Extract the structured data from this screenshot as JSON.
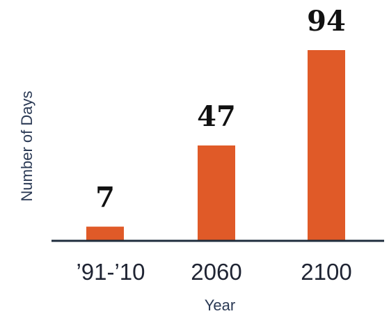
{
  "chart_data": {
    "type": "bar",
    "categories": [
      "’91-’10",
      "2060",
      "2100"
    ],
    "values": [
      7,
      47,
      94
    ],
    "data_labels": [
      "7",
      "47",
      "94"
    ],
    "title": "",
    "xlabel": "Year",
    "ylabel": "Number of Days",
    "ylim": [
      0,
      94
    ],
    "grid": false,
    "legend": "none",
    "colors": {
      "bar": "#e05a28",
      "axis": "#1f2d3d",
      "axis_title": "#2b3a55",
      "tick_label": "#1f2433",
      "data_label": "#111111"
    }
  }
}
